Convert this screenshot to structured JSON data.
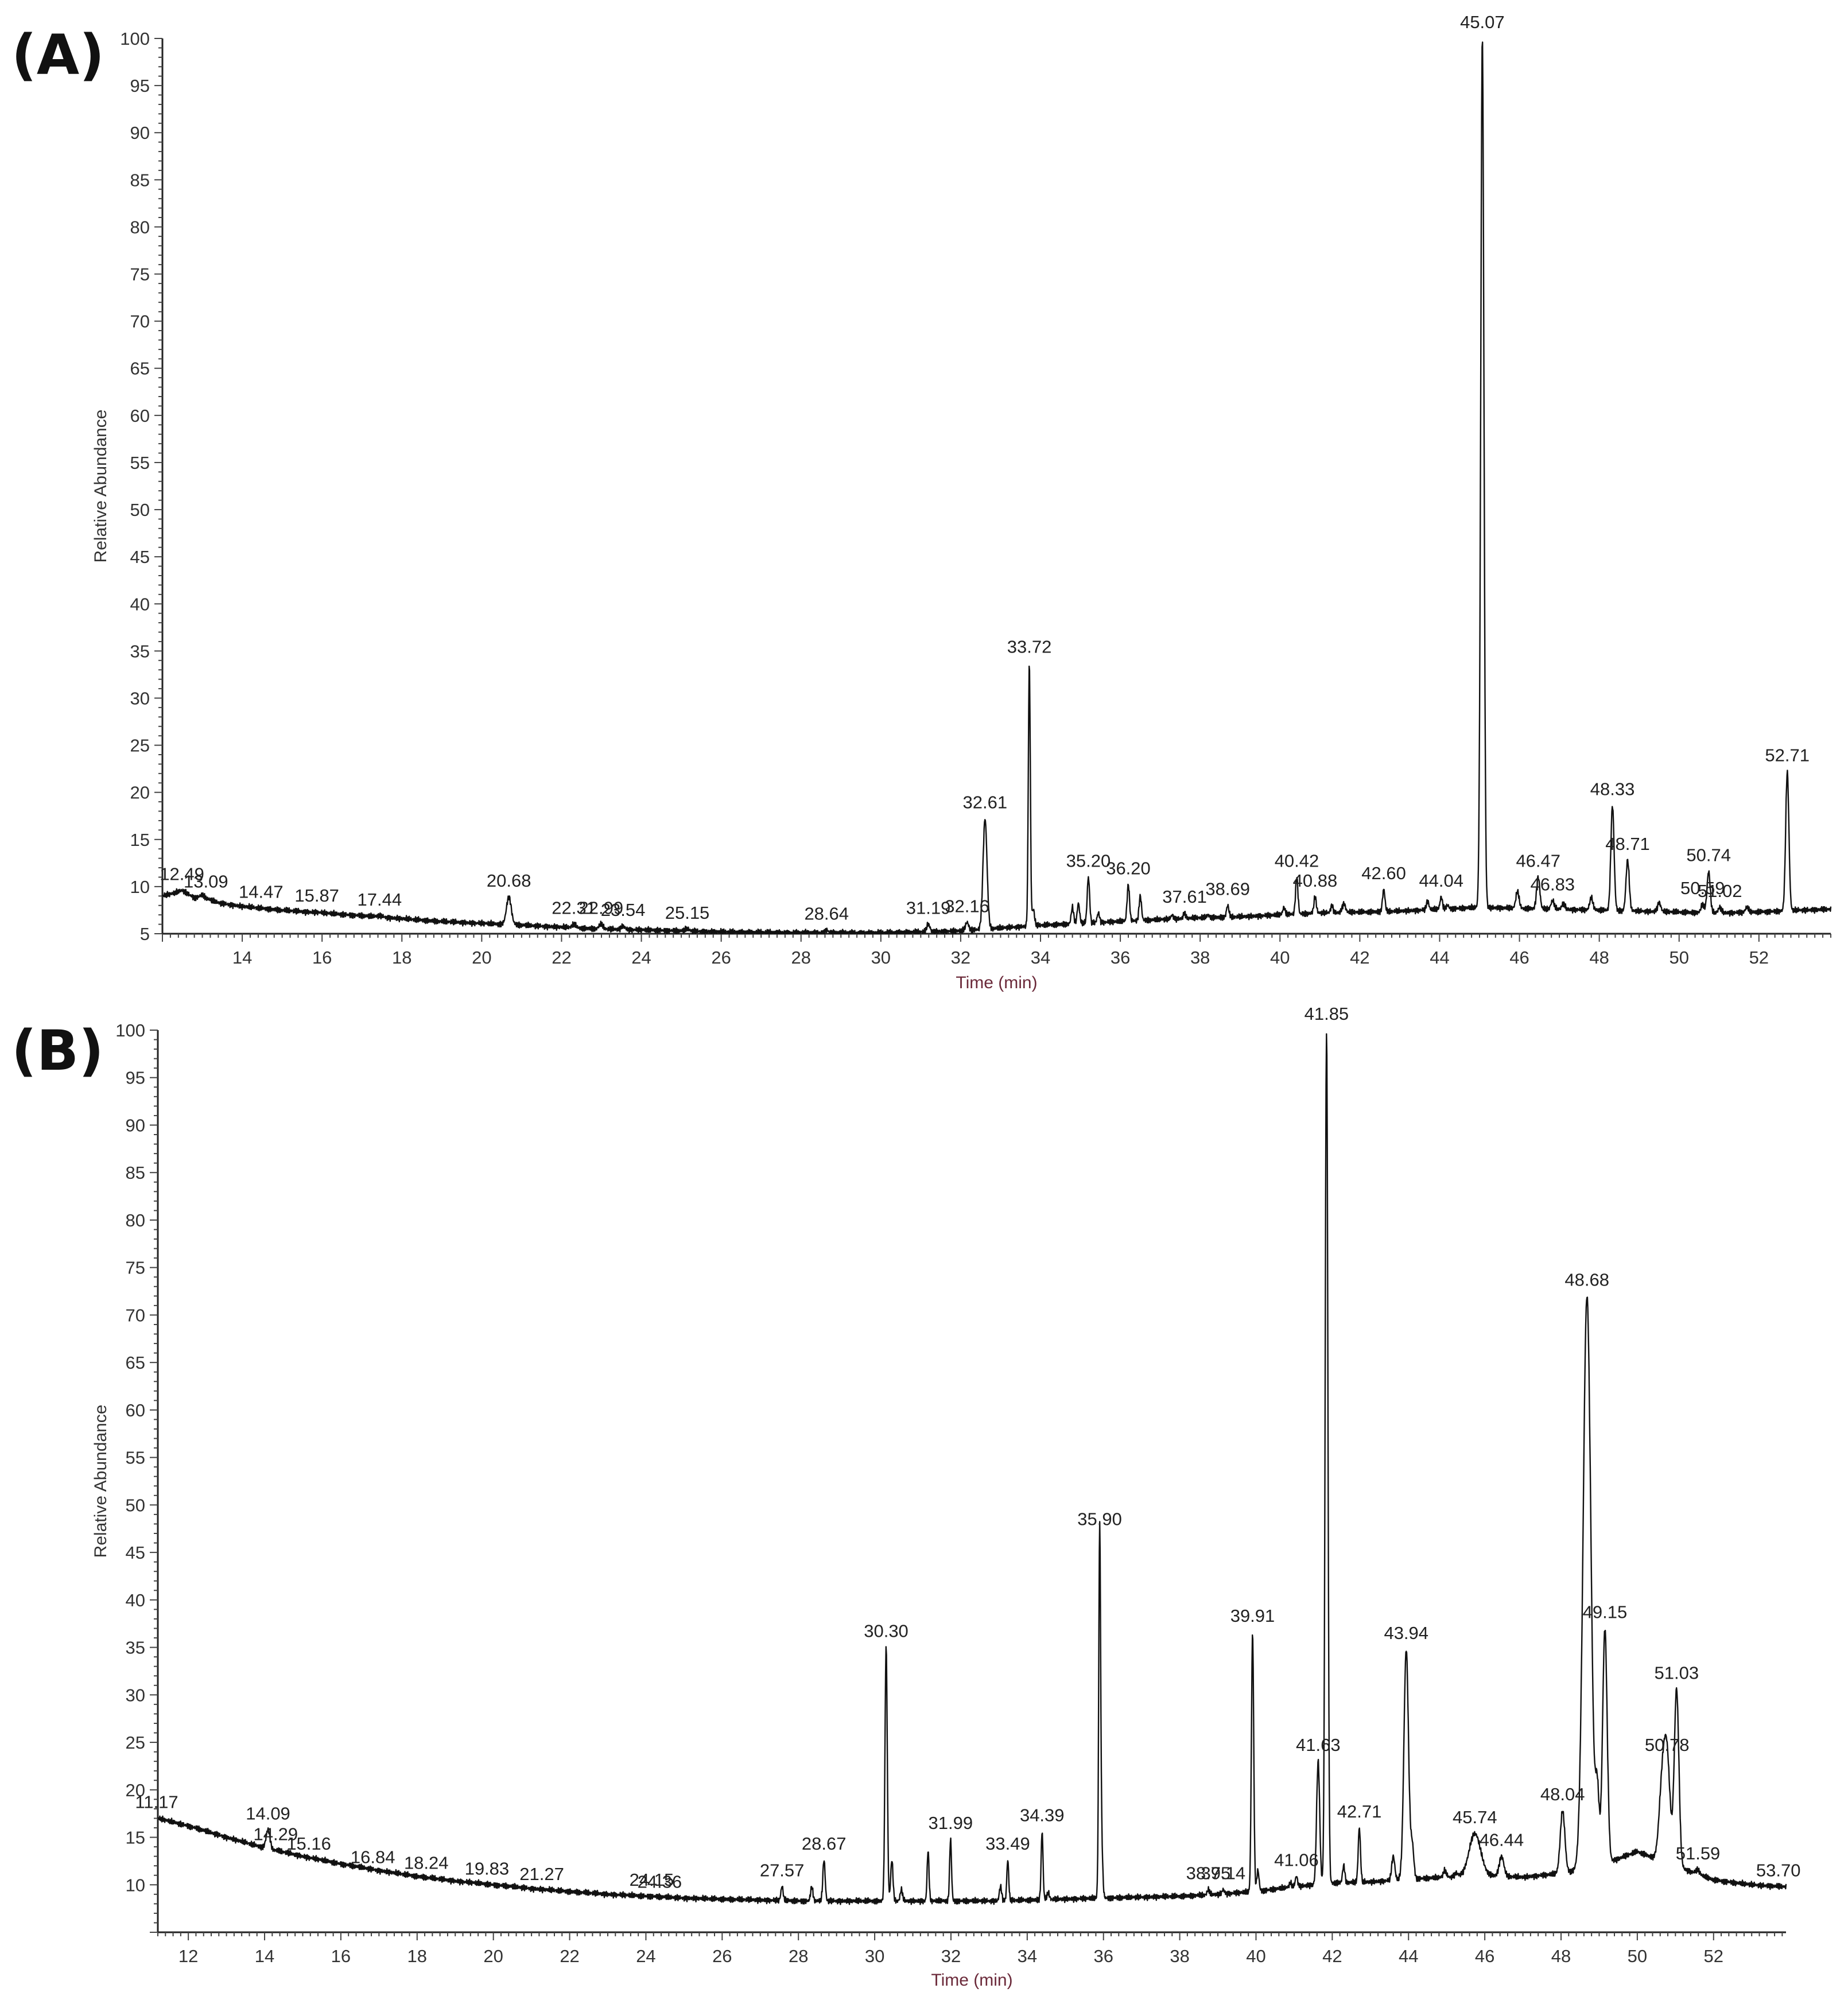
{
  "chart_data": [
    {
      "type": "line",
      "panel_label": "(A)",
      "xlabel": "Time (min)",
      "ylabel": "Relative Abundance",
      "xlim": [
        12.0,
        53.8
      ],
      "ylim": [
        5,
        100
      ],
      "x_ticks": [
        "14",
        "16",
        "18",
        "20",
        "22",
        "24",
        "26",
        "28",
        "30",
        "32",
        "34",
        "36",
        "38",
        "40",
        "42",
        "44",
        "46",
        "48",
        "50",
        "52"
      ],
      "y_ticks": [
        "5",
        "10",
        "15",
        "20",
        "25",
        "30",
        "35",
        "40",
        "45",
        "50",
        "55",
        "60",
        "65",
        "70",
        "75",
        "80",
        "85",
        "90",
        "95",
        "100"
      ],
      "baseline": [
        [
          12.0,
          9.0
        ],
        [
          12.3,
          9.3
        ],
        [
          12.5,
          9.6
        ],
        [
          12.8,
          8.8
        ],
        [
          13.0,
          9.0
        ],
        [
          13.1,
          8.6
        ],
        [
          13.5,
          8.2
        ],
        [
          14.0,
          7.9
        ],
        [
          15.0,
          7.5
        ],
        [
          16.0,
          7.2
        ],
        [
          17.0,
          6.9
        ],
        [
          18.0,
          6.6
        ],
        [
          19.0,
          6.3
        ],
        [
          20.0,
          6.1
        ],
        [
          21.0,
          5.9
        ],
        [
          22.0,
          5.7
        ],
        [
          23.0,
          5.5
        ],
        [
          24.0,
          5.4
        ],
        [
          25.0,
          5.3
        ],
        [
          26.0,
          5.2
        ],
        [
          27.0,
          5.15
        ],
        [
          28.0,
          5.1
        ],
        [
          29.0,
          5.1
        ],
        [
          30.0,
          5.1
        ],
        [
          31.0,
          5.2
        ],
        [
          32.0,
          5.3
        ],
        [
          33.0,
          5.6
        ],
        [
          34.0,
          5.9
        ],
        [
          35.0,
          6.1
        ],
        [
          36.0,
          6.3
        ],
        [
          37.0,
          6.5
        ],
        [
          38.0,
          6.7
        ],
        [
          39.0,
          6.8
        ],
        [
          40.0,
          7.0
        ],
        [
          41.0,
          7.2
        ],
        [
          42.0,
          7.3
        ],
        [
          43.0,
          7.4
        ],
        [
          44.0,
          7.6
        ],
        [
          45.0,
          7.8
        ],
        [
          46.0,
          7.7
        ],
        [
          47.0,
          7.6
        ],
        [
          48.0,
          7.5
        ],
        [
          49.0,
          7.4
        ],
        [
          50.0,
          7.3
        ],
        [
          51.0,
          7.2
        ],
        [
          52.0,
          7.3
        ],
        [
          53.0,
          7.5
        ],
        [
          53.8,
          7.6
        ]
      ],
      "peaks": [
        {
          "label": "12.49",
          "x": 12.49,
          "y": 9.6,
          "w": 0.15
        },
        {
          "label": "13.09",
          "x": 13.09,
          "y": 8.8,
          "w": 0.1
        },
        {
          "label": "14.47",
          "x": 14.47,
          "y": 7.7,
          "w": 0.08
        },
        {
          "label": "15.87",
          "x": 15.87,
          "y": 7.3,
          "w": 0.08
        },
        {
          "label": "17.44",
          "x": 17.44,
          "y": 6.9,
          "w": 0.08
        },
        {
          "label": "20.68",
          "x": 20.68,
          "y": 8.9,
          "w": 0.06
        },
        {
          "label": "22.31",
          "x": 22.31,
          "y": 6.0,
          "w": 0.05
        },
        {
          "label": "22.99",
          "x": 22.99,
          "y": 6.0,
          "w": 0.05
        },
        {
          "label": "23.54",
          "x": 23.54,
          "y": 5.8,
          "w": 0.05
        },
        {
          "label": "25.15",
          "x": 25.15,
          "y": 5.5,
          "w": 0.05
        },
        {
          "label": "28.64",
          "x": 28.64,
          "y": 5.4,
          "w": 0.04
        },
        {
          "label": "31.19",
          "x": 31.19,
          "y": 6.0,
          "w": 0.04
        },
        {
          "label": "32.16",
          "x": 32.16,
          "y": 6.2,
          "w": 0.04
        },
        {
          "label": "32.61",
          "x": 32.61,
          "y": 17.2,
          "w": 0.05
        },
        {
          "label": "33.72",
          "x": 33.72,
          "y": 33.7,
          "w": 0.025
        },
        {
          "label": "35.20",
          "x": 35.2,
          "y": 11.0,
          "w": 0.03
        },
        {
          "label": "36.20",
          "x": 36.2,
          "y": 10.2,
          "w": 0.03
        },
        {
          "label": "37.61",
          "x": 37.61,
          "y": 7.2,
          "w": 0.03
        },
        {
          "label": "38.69",
          "x": 38.69,
          "y": 8.0,
          "w": 0.03
        },
        {
          "label": "40.42",
          "x": 40.42,
          "y": 11.0,
          "w": 0.03
        },
        {
          "label": "40.88",
          "x": 40.88,
          "y": 8.9,
          "w": 0.03
        },
        {
          "label": "42.60",
          "x": 42.6,
          "y": 9.7,
          "w": 0.03
        },
        {
          "label": "44.04",
          "x": 44.04,
          "y": 8.9,
          "w": 0.03
        },
        {
          "label": "45.07",
          "x": 45.07,
          "y": 100.0,
          "w": 0.04
        },
        {
          "label": "46.47",
          "x": 46.47,
          "y": 11.0,
          "w": 0.04
        },
        {
          "label": "46.83",
          "x": 46.83,
          "y": 8.5,
          "w": 0.04
        },
        {
          "label": "48.33",
          "x": 48.33,
          "y": 18.6,
          "w": 0.04
        },
        {
          "label": "48.71",
          "x": 48.71,
          "y": 12.8,
          "w": 0.04
        },
        {
          "label": "50.59",
          "x": 50.59,
          "y": 8.1,
          "w": 0.04
        },
        {
          "label": "50.74",
          "x": 50.74,
          "y": 11.6,
          "w": 0.04
        },
        {
          "label": "51.02",
          "x": 51.02,
          "y": 7.8,
          "w": 0.04
        },
        {
          "label": "52.71",
          "x": 52.71,
          "y": 22.2,
          "w": 0.04
        }
      ],
      "minor_peaks": [
        [
          33.82,
          7.6,
          0.03
        ],
        [
          34.8,
          7.8,
          0.03
        ],
        [
          34.95,
          8.2,
          0.03
        ],
        [
          35.45,
          7.2,
          0.03
        ],
        [
          36.5,
          9.0,
          0.03
        ],
        [
          37.3,
          7.0,
          0.03
        ],
        [
          38.2,
          7.0,
          0.03
        ],
        [
          40.1,
          7.8,
          0.03
        ],
        [
          41.3,
          8.0,
          0.03
        ],
        [
          41.6,
          8.2,
          0.04
        ],
        [
          43.7,
          8.5,
          0.03
        ],
        [
          44.2,
          8.0,
          0.03
        ],
        [
          45.95,
          9.5,
          0.04
        ],
        [
          47.1,
          8.2,
          0.04
        ],
        [
          47.8,
          8.8,
          0.04
        ],
        [
          49.5,
          8.3,
          0.04
        ],
        [
          51.7,
          7.8,
          0.04
        ]
      ]
    },
    {
      "type": "line",
      "panel_label": "(B)",
      "xlabel": "Time (min)",
      "ylabel": "Relative Abundance",
      "xlim": [
        11.2,
        53.9
      ],
      "ylim": [
        5,
        100
      ],
      "x_ticks": [
        "12",
        "14",
        "16",
        "18",
        "20",
        "22",
        "24",
        "26",
        "28",
        "30",
        "32",
        "34",
        "36",
        "38",
        "40",
        "42",
        "44",
        "46",
        "48",
        "50",
        "52"
      ],
      "y_ticks": [
        "10",
        "15",
        "20",
        "25",
        "30",
        "35",
        "40",
        "45",
        "50",
        "55",
        "60",
        "65",
        "70",
        "75",
        "80",
        "85",
        "90",
        "95",
        "100"
      ],
      "baseline": [
        [
          11.2,
          17.0
        ],
        [
          12.0,
          16.2
        ],
        [
          13.0,
          15.0
        ],
        [
          14.0,
          13.9
        ],
        [
          15.0,
          13.0
        ],
        [
          16.0,
          12.2
        ],
        [
          17.0,
          11.5
        ],
        [
          18.0,
          10.9
        ],
        [
          19.0,
          10.4
        ],
        [
          20.0,
          10.0
        ],
        [
          21.0,
          9.6
        ],
        [
          22.0,
          9.3
        ],
        [
          23.0,
          9.0
        ],
        [
          24.0,
          8.8
        ],
        [
          25.0,
          8.6
        ],
        [
          26.0,
          8.5
        ],
        [
          27.0,
          8.4
        ],
        [
          28.0,
          8.3
        ],
        [
          29.0,
          8.3
        ],
        [
          30.0,
          8.3
        ],
        [
          31.0,
          8.3
        ],
        [
          32.0,
          8.3
        ],
        [
          33.0,
          8.3
        ],
        [
          34.0,
          8.4
        ],
        [
          35.0,
          8.5
        ],
        [
          36.0,
          8.6
        ],
        [
          37.0,
          8.7
        ],
        [
          38.0,
          8.8
        ],
        [
          39.0,
          9.0
        ],
        [
          40.0,
          9.3
        ],
        [
          41.0,
          9.8
        ],
        [
          42.0,
          10.2
        ],
        [
          43.0,
          10.3
        ],
        [
          44.0,
          10.6
        ],
        [
          45.0,
          10.8
        ],
        [
          46.0,
          11.0
        ],
        [
          47.0,
          10.8
        ],
        [
          48.0,
          11.2
        ],
        [
          49.0,
          12.0
        ],
        [
          50.0,
          13.5
        ],
        [
          51.0,
          12.0
        ],
        [
          52.0,
          10.5
        ],
        [
          53.0,
          10.0
        ],
        [
          53.9,
          9.8
        ]
      ],
      "peaks": [
        {
          "label": "11.17",
          "x": 11.17,
          "y": 17.0,
          "w": 0.05
        },
        {
          "label": "14.09",
          "x": 14.09,
          "y": 15.8,
          "w": 0.05
        },
        {
          "label": "14.29",
          "x": 14.29,
          "y": 13.6,
          "w": 0.05
        },
        {
          "label": "15.16",
          "x": 15.16,
          "y": 12.6,
          "w": 0.05
        },
        {
          "label": "16.84",
          "x": 16.84,
          "y": 11.2,
          "w": 0.05
        },
        {
          "label": "18.24",
          "x": 18.24,
          "y": 10.6,
          "w": 0.05
        },
        {
          "label": "19.83",
          "x": 19.83,
          "y": 10.0,
          "w": 0.05
        },
        {
          "label": "21.27",
          "x": 21.27,
          "y": 9.4,
          "w": 0.05
        },
        {
          "label": "24.15",
          "x": 24.15,
          "y": 8.8,
          "w": 0.05
        },
        {
          "label": "24.36",
          "x": 24.36,
          "y": 8.6,
          "w": 0.05
        },
        {
          "label": "27.57",
          "x": 27.57,
          "y": 9.8,
          "w": 0.03
        },
        {
          "label": "28.67",
          "x": 28.67,
          "y": 12.6,
          "w": 0.03
        },
        {
          "label": "30.30",
          "x": 30.3,
          "y": 35.0,
          "w": 0.03
        },
        {
          "label": "31.99",
          "x": 31.99,
          "y": 14.8,
          "w": 0.025
        },
        {
          "label": "33.49",
          "x": 33.49,
          "y": 12.6,
          "w": 0.025
        },
        {
          "label": "34.39",
          "x": 34.39,
          "y": 15.6,
          "w": 0.025
        },
        {
          "label": "35.90",
          "x": 35.9,
          "y": 46.8,
          "w": 0.025
        },
        {
          "label": "38.75",
          "x": 38.75,
          "y": 9.5,
          "w": 0.03
        },
        {
          "label": "39.14",
          "x": 39.14,
          "y": 9.5,
          "w": 0.03
        },
        {
          "label": "39.91",
          "x": 39.91,
          "y": 36.6,
          "w": 0.03
        },
        {
          "label": "41.06",
          "x": 41.06,
          "y": 10.9,
          "w": 0.03
        },
        {
          "label": "41.63",
          "x": 41.63,
          "y": 23.0,
          "w": 0.04
        },
        {
          "label": "41.85",
          "x": 41.85,
          "y": 100.0,
          "w": 0.035
        },
        {
          "label": "42.71",
          "x": 42.71,
          "y": 16.0,
          "w": 0.03
        },
        {
          "label": "43.94",
          "x": 43.94,
          "y": 34.8,
          "w": 0.06
        },
        {
          "label": "45.74",
          "x": 45.74,
          "y": 15.4,
          "w": 0.15
        },
        {
          "label": "46.44",
          "x": 46.44,
          "y": 13.0,
          "w": 0.06
        },
        {
          "label": "48.04",
          "x": 48.04,
          "y": 17.8,
          "w": 0.06
        },
        {
          "label": "48.68",
          "x": 48.68,
          "y": 72.0,
          "w": 0.1
        },
        {
          "label": "49.15",
          "x": 49.15,
          "y": 37.0,
          "w": 0.06
        },
        {
          "label": "50.78",
          "x": 50.78,
          "y": 23.0,
          "w": 0.08
        },
        {
          "label": "51.03",
          "x": 51.03,
          "y": 30.6,
          "w": 0.06
        },
        {
          "label": "51.59",
          "x": 51.59,
          "y": 11.6,
          "w": 0.05
        },
        {
          "label": "53.70",
          "x": 53.7,
          "y": 9.8,
          "w": 0.05
        }
      ],
      "minor_peaks": [
        [
          28.35,
          9.8,
          0.03
        ],
        [
          30.45,
          12.6,
          0.03
        ],
        [
          30.7,
          9.5,
          0.03
        ],
        [
          31.4,
          13.6,
          0.025
        ],
        [
          33.3,
          9.8,
          0.03
        ],
        [
          34.55,
          9.2,
          0.03
        ],
        [
          35.95,
          14.0,
          0.03
        ],
        [
          40.05,
          11.5,
          0.03
        ],
        [
          40.9,
          10.2,
          0.03
        ],
        [
          42.3,
          12.0,
          0.03
        ],
        [
          43.6,
          13.0,
          0.04
        ],
        [
          44.1,
          14.0,
          0.04
        ],
        [
          44.95,
          11.5,
          0.04
        ],
        [
          45.25,
          11.2,
          0.05
        ],
        [
          46.8,
          10.8,
          0.05
        ],
        [
          48.95,
          20.0,
          0.05
        ],
        [
          50.65,
          20.0,
          0.08
        ]
      ]
    }
  ]
}
